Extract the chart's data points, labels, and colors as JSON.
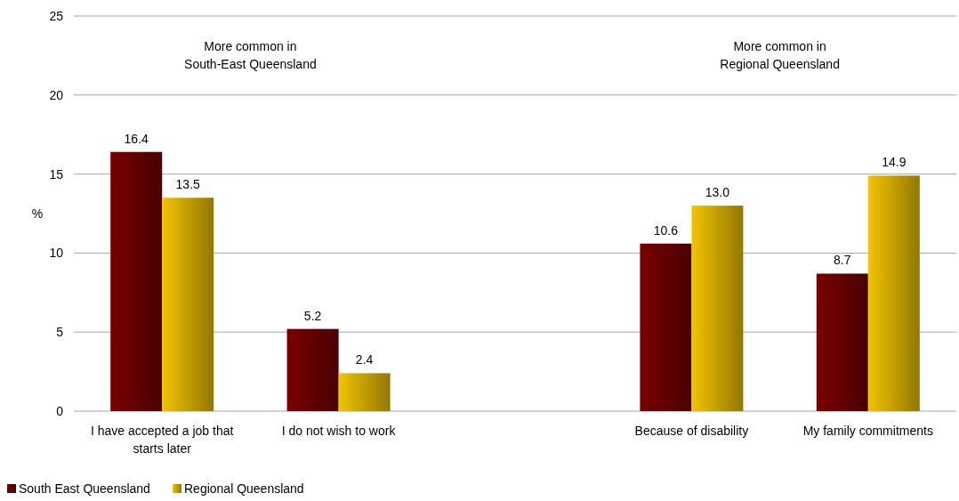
{
  "chart_data": {
    "type": "bar",
    "ylabel": "%",
    "categories": [
      "I have accepted a job that starts later",
      "I do not wish to work",
      null,
      "Because of disability",
      "My family commitments"
    ],
    "series": [
      {
        "name": "South East Queensland",
        "color": "#7a0000",
        "values": [
          16.4,
          5.2,
          null,
          10.6,
          8.7
        ],
        "value_labels": [
          "16.4",
          "5.2",
          null,
          "10.6",
          "8.7"
        ]
      },
      {
        "name": "Regional Queensland",
        "color": "#f2c400",
        "values": [
          13.5,
          2.4,
          null,
          13.0,
          14.9
        ],
        "value_labels": [
          "13.5",
          "2.4",
          null,
          "13.0",
          "14.9"
        ]
      }
    ],
    "ylim": [
      0,
      25
    ],
    "yticks": [
      0,
      5,
      10,
      15,
      20,
      25
    ],
    "grid": "y",
    "legend": "bottom left",
    "annotations": [
      "More common in\nSouth-East Queensland",
      "More common in\nRegional Queensland"
    ]
  }
}
